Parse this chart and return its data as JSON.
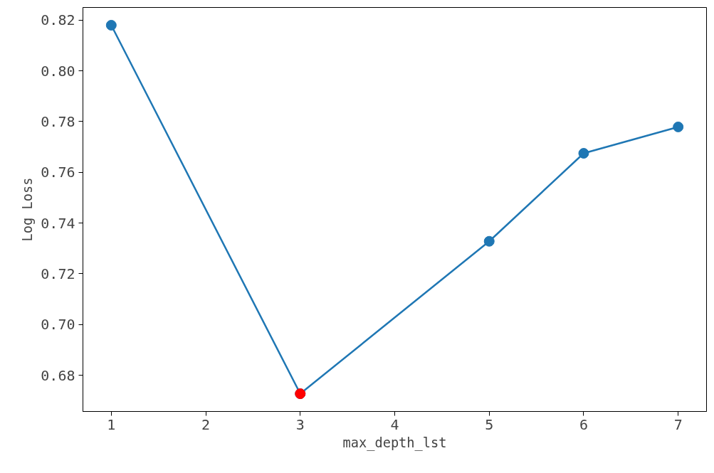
{
  "chart_data": {
    "type": "line",
    "xlabel": "max_depth_lst",
    "ylabel": "Log Loss",
    "xlim": [
      0.7,
      7.3
    ],
    "xticks": [
      1,
      2,
      3,
      4,
      5,
      6,
      7
    ],
    "ylim": [
      0.6657,
      0.825
    ],
    "yticks": [
      {
        "value": 0.68,
        "label": "0.68"
      },
      {
        "value": 0.7,
        "label": "0.70"
      },
      {
        "value": 0.72,
        "label": "0.72"
      },
      {
        "value": 0.74,
        "label": "0.74"
      },
      {
        "value": 0.76,
        "label": "0.76"
      },
      {
        "value": 0.78,
        "label": "0.78"
      },
      {
        "value": 0.8,
        "label": "0.80"
      },
      {
        "value": 0.82,
        "label": "0.82"
      }
    ],
    "grid": false,
    "marker": "circle",
    "line_style": "solid",
    "series": [
      {
        "color": "#1f77b4",
        "x": [
          1,
          3,
          5,
          6,
          7
        ],
        "values": [
          0.818,
          0.6727,
          0.7328,
          0.7675,
          0.7779
        ]
      },
      {
        "type": "scatter",
        "color": "#ff0000",
        "x": [
          3
        ],
        "values": [
          0.6727
        ]
      }
    ]
  }
}
